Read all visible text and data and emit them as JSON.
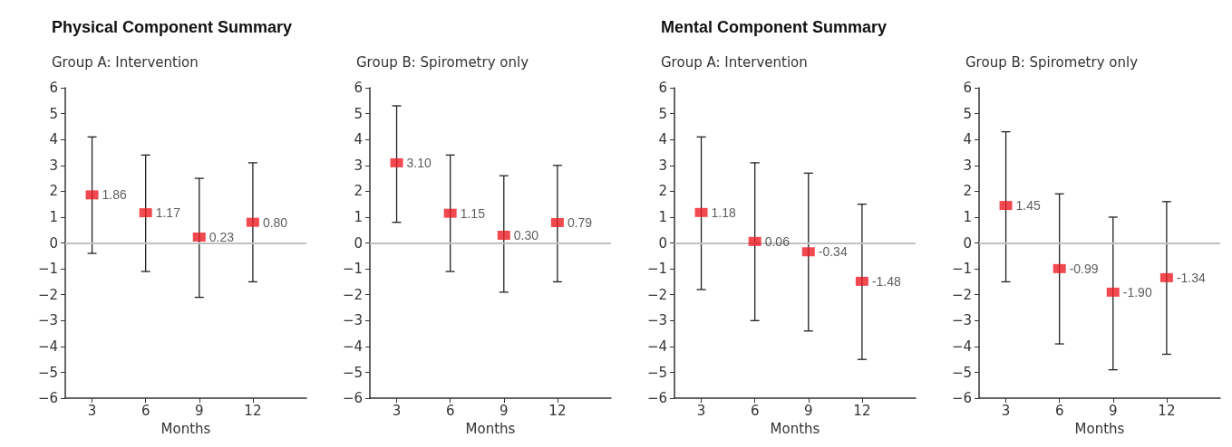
{
  "chart_data": [
    {
      "type": "scatter",
      "title": "Physical Component Summary",
      "subtitle": "Group A: Intervention",
      "xlabel": "Months",
      "x": [
        3,
        6,
        9,
        12
      ],
      "values": [
        1.86,
        1.17,
        0.23,
        0.8
      ],
      "value_labels": [
        "1.86",
        "1.17",
        "0.23",
        "0.80"
      ],
      "errors": [
        [
          -0.4,
          4.1
        ],
        [
          -1.1,
          3.4
        ],
        [
          -2.1,
          2.5
        ],
        [
          -1.5,
          3.1
        ]
      ],
      "color": "#ed1c24",
      "marker": "square",
      "xlim": [
        1.5,
        15
      ],
      "xticks": [
        3,
        6,
        9,
        12
      ],
      "ylim": [
        -6,
        6
      ],
      "yticks": [
        {
          "value": -6,
          "label": "−6"
        },
        {
          "value": -5,
          "label": "−5"
        },
        {
          "value": -4,
          "label": "−4"
        },
        {
          "value": -3,
          "label": "−3"
        },
        {
          "value": -2,
          "label": "−2"
        },
        {
          "value": -1,
          "label": "−1"
        },
        0,
        1,
        2,
        3,
        4,
        5,
        6
      ],
      "ref_lines": [
        {
          "axis": "y",
          "value": 0,
          "color": "#c0c0c0"
        }
      ],
      "grid": false
    },
    {
      "type": "scatter",
      "subtitle": "Group B: Spirometry only",
      "xlabel": "Months",
      "x": [
        3,
        6,
        9,
        12
      ],
      "values": [
        3.1,
        1.15,
        0.3,
        0.79
      ],
      "value_labels": [
        "3.10",
        "1.15",
        "0.30",
        "0.79"
      ],
      "errors": [
        [
          0.8,
          5.3
        ],
        [
          -1.1,
          3.4
        ],
        [
          -1.9,
          2.6
        ],
        [
          -1.5,
          3.0
        ]
      ],
      "color": "#ed1c24",
      "marker": "square",
      "xlim": [
        1.5,
        15
      ],
      "xticks": [
        3,
        6,
        9,
        12
      ],
      "ylim": [
        -6,
        6
      ],
      "yticks": [
        {
          "value": -6,
          "label": "−6"
        },
        {
          "value": -5,
          "label": "−5"
        },
        {
          "value": -4,
          "label": "−4"
        },
        {
          "value": -3,
          "label": "−3"
        },
        {
          "value": -2,
          "label": "−2"
        },
        {
          "value": -1,
          "label": "−1"
        },
        0,
        1,
        2,
        3,
        4,
        5,
        6
      ],
      "ref_lines": [
        {
          "axis": "y",
          "value": 0,
          "color": "#c0c0c0"
        }
      ],
      "grid": false
    },
    {
      "type": "scatter",
      "title": "Mental Component Summary",
      "subtitle": "Group A: Intervention",
      "xlabel": "Months",
      "x": [
        3,
        6,
        9,
        12
      ],
      "values": [
        1.18,
        0.06,
        -0.34,
        -1.48
      ],
      "value_labels": [
        "1.18",
        "0.06",
        "-0.34",
        "-1.48"
      ],
      "errors": [
        [
          -1.8,
          4.1
        ],
        [
          -3.0,
          3.1
        ],
        [
          -3.4,
          2.7
        ],
        [
          -4.5,
          1.5
        ]
      ],
      "color": "#ed1c24",
      "marker": "square",
      "xlim": [
        1.5,
        15
      ],
      "xticks": [
        3,
        6,
        9,
        12
      ],
      "ylim": [
        -6,
        6
      ],
      "yticks": [
        {
          "value": -6,
          "label": "−6"
        },
        {
          "value": -5,
          "label": "−5"
        },
        {
          "value": -4,
          "label": "−4"
        },
        {
          "value": -3,
          "label": "−3"
        },
        {
          "value": -2,
          "label": "−2"
        },
        {
          "value": -1,
          "label": "−1"
        },
        0,
        1,
        2,
        3,
        4,
        5,
        6
      ],
      "ref_lines": [
        {
          "axis": "y",
          "value": 0,
          "color": "#c0c0c0"
        }
      ],
      "grid": false
    },
    {
      "type": "scatter",
      "subtitle": "Group B: Spirometry only",
      "xlabel": "Months",
      "x": [
        3,
        6,
        9,
        12
      ],
      "values": [
        1.45,
        -0.99,
        -1.9,
        -1.34
      ],
      "value_labels": [
        "1.45",
        "-0.99",
        "-1.90",
        "-1.34"
      ],
      "errors": [
        [
          -1.5,
          4.3
        ],
        [
          -3.9,
          1.9
        ],
        [
          -4.9,
          1.0
        ],
        [
          -4.3,
          1.6
        ]
      ],
      "color": "#ed1c24",
      "marker": "square",
      "xlim": [
        1.5,
        15
      ],
      "xticks": [
        3,
        6,
        9,
        12
      ],
      "ylim": [
        -6,
        6
      ],
      "yticks": [
        {
          "value": -6,
          "label": "−6"
        },
        {
          "value": -5,
          "label": "−5"
        },
        {
          "value": -4,
          "label": "−4"
        },
        {
          "value": -3,
          "label": "−3"
        },
        {
          "value": -2,
          "label": "−2"
        },
        {
          "value": -1,
          "label": "−1"
        },
        0,
        1,
        2,
        3,
        4,
        5,
        6
      ],
      "ref_lines": [
        {
          "axis": "y",
          "value": 0,
          "color": "#c0c0c0"
        }
      ],
      "grid": false
    }
  ]
}
